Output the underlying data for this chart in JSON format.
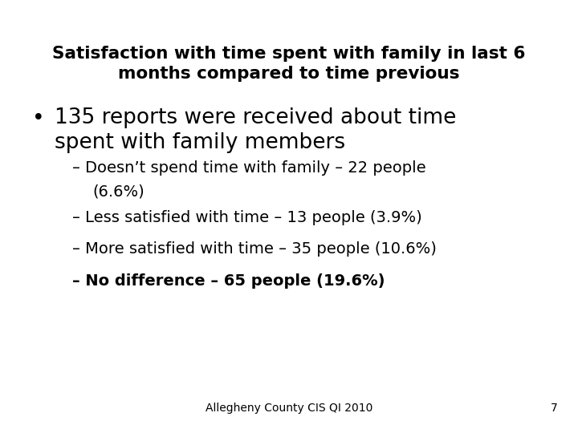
{
  "title_line1": "Satisfaction with time spent with family in last 6",
  "title_line2": "months compared to time previous",
  "bullet_char": "•",
  "bullet_main_line1": "135 reports were received about time",
  "bullet_main_line2": "spent with family members",
  "sub1_line1": "– Doesn’t spend time with family – 22 people",
  "sub1_line2": "(6.6%)",
  "sub2": "– Less satisfied with time – 13 people (3.9%)",
  "sub3": "– More satisfied with time – 35 people (10.6%)",
  "sub4": "– No difference – 65 people (19.6%)",
  "footer": "Allegheny County CIS QI 2010",
  "page_num": "7",
  "bg_color": "#ffffff",
  "text_color": "#000000",
  "title_fontsize": 15.5,
  "bullet_fontsize": 19,
  "sub_fontsize": 14,
  "footer_fontsize": 10
}
